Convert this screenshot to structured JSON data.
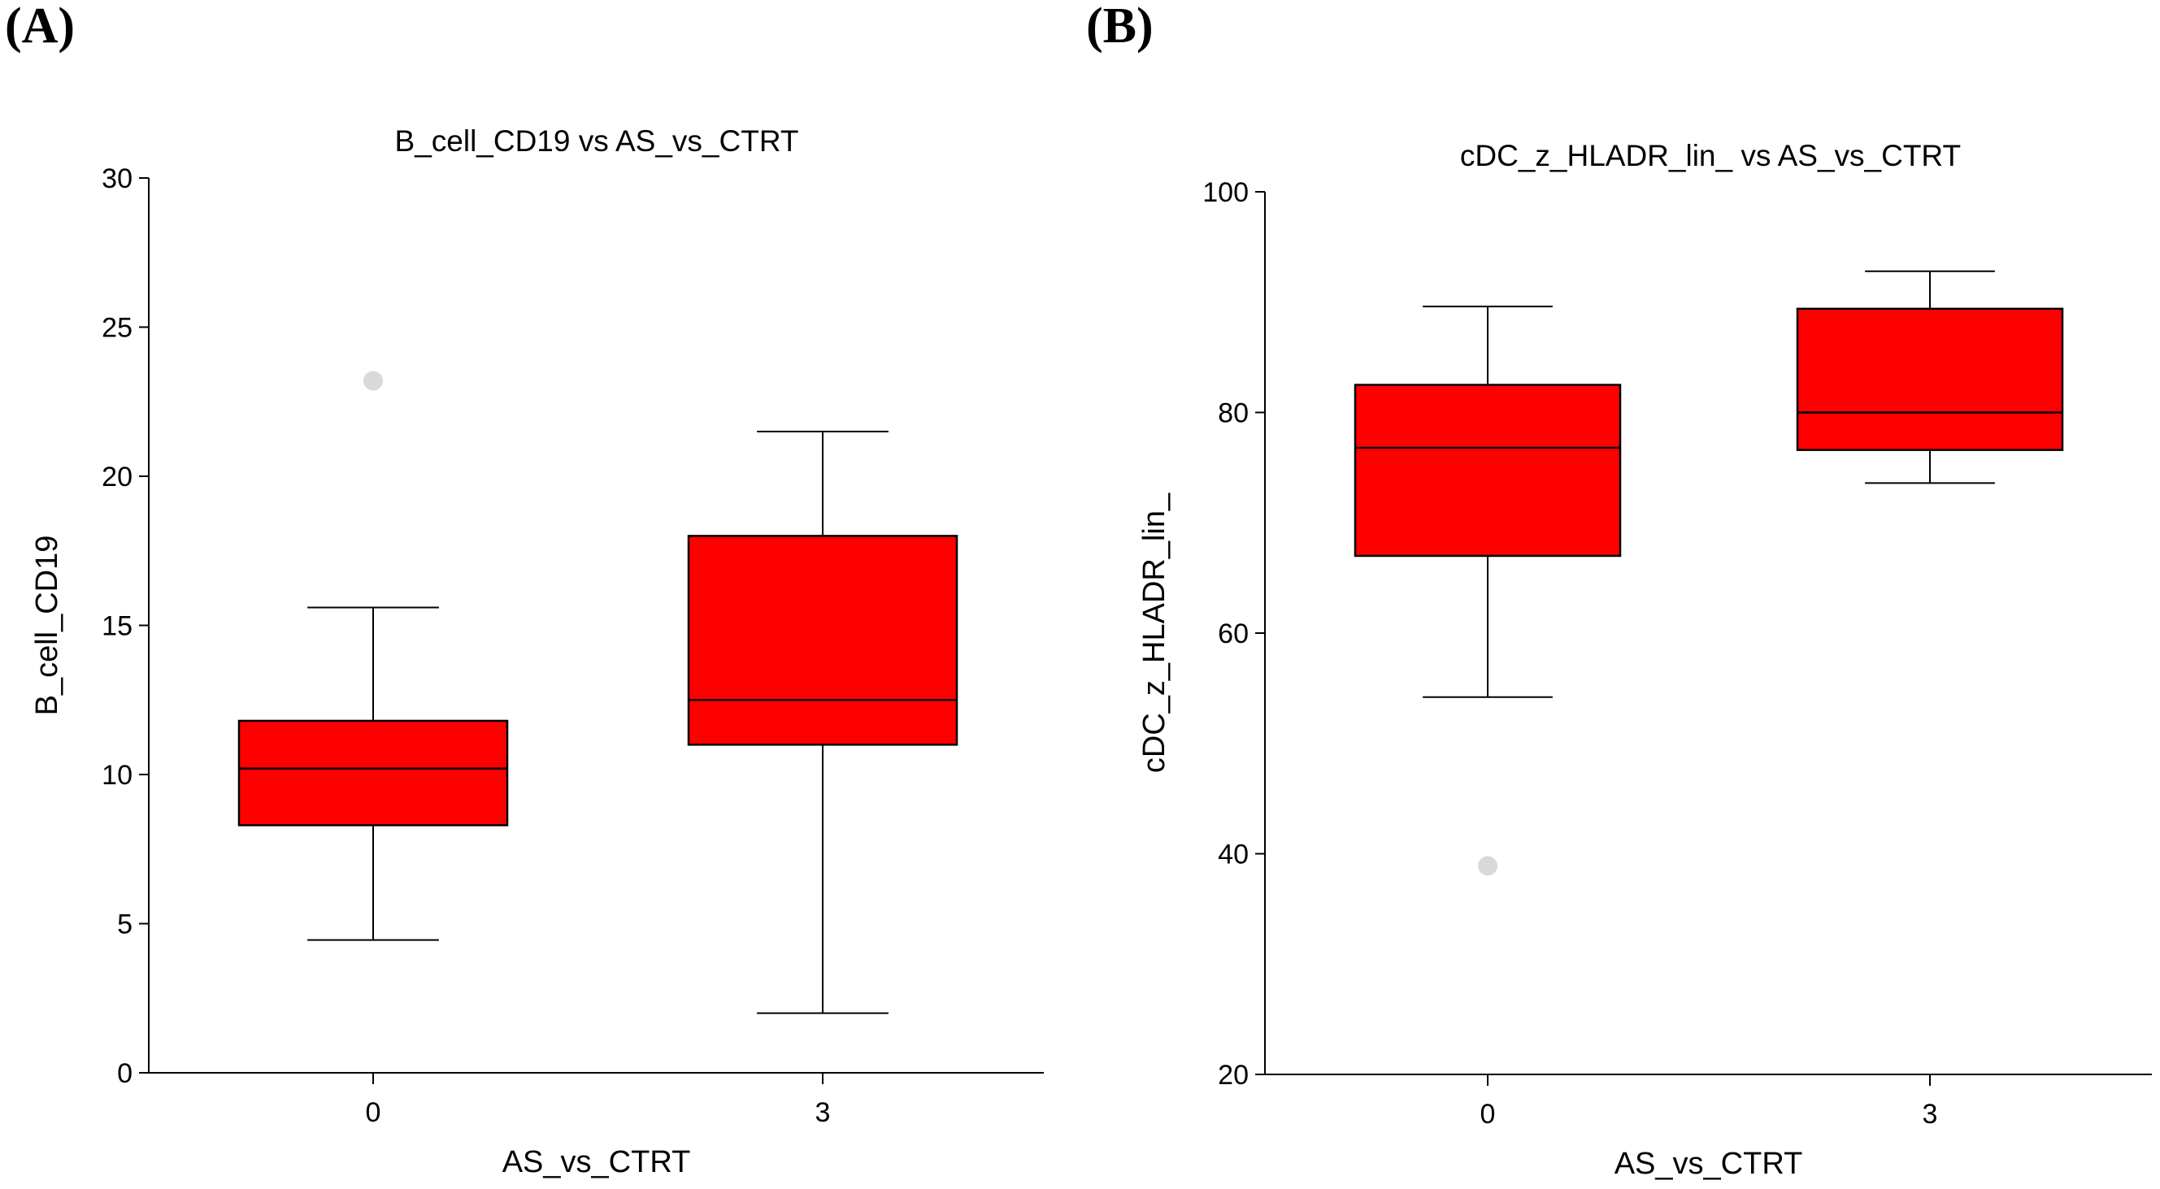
{
  "panels": [
    "(A)",
    "(B)"
  ],
  "chart_data": [
    {
      "type": "box",
      "title": "B_cell_CD19 vs AS_vs_CTRT",
      "xlabel": "AS_vs_CTRT",
      "ylabel": "B_cell_CD19",
      "ylim": [
        0,
        30
      ],
      "yticks": [
        0,
        5,
        10,
        15,
        20,
        25,
        30
      ],
      "categories": [
        "0",
        "3"
      ],
      "box_color": "#ff0000",
      "outlier_color": "#d9d9d9",
      "boxes": [
        {
          "category": "0",
          "whisker_low": 4.45,
          "q1": 8.3,
          "median": 10.2,
          "q3": 11.8,
          "whisker_high": 15.6,
          "outliers": [
            23.2
          ]
        },
        {
          "category": "3",
          "whisker_low": 2.0,
          "q1": 11.0,
          "median": 12.5,
          "q3": 18.0,
          "whisker_high": 21.5,
          "outliers": []
        }
      ]
    },
    {
      "type": "box",
      "title": "cDC_z_HLADR_lin_ vs AS_vs_CTRT",
      "xlabel": "AS_vs_CTRT",
      "ylabel": "cDC_z_HLADR_lin_",
      "ylim": [
        20,
        100
      ],
      "yticks": [
        20,
        40,
        60,
        80,
        100
      ],
      "categories": [
        "0",
        "3"
      ],
      "box_color": "#ff0000",
      "outlier_color": "#d9d9d9",
      "boxes": [
        {
          "category": "0",
          "whisker_low": 54.2,
          "q1": 67.0,
          "median": 76.8,
          "q3": 82.5,
          "whisker_high": 89.6,
          "outliers": [
            38.9
          ]
        },
        {
          "category": "3",
          "whisker_low": 73.6,
          "q1": 76.6,
          "median": 80.0,
          "q3": 89.4,
          "whisker_high": 92.8,
          "outliers": []
        }
      ]
    }
  ]
}
